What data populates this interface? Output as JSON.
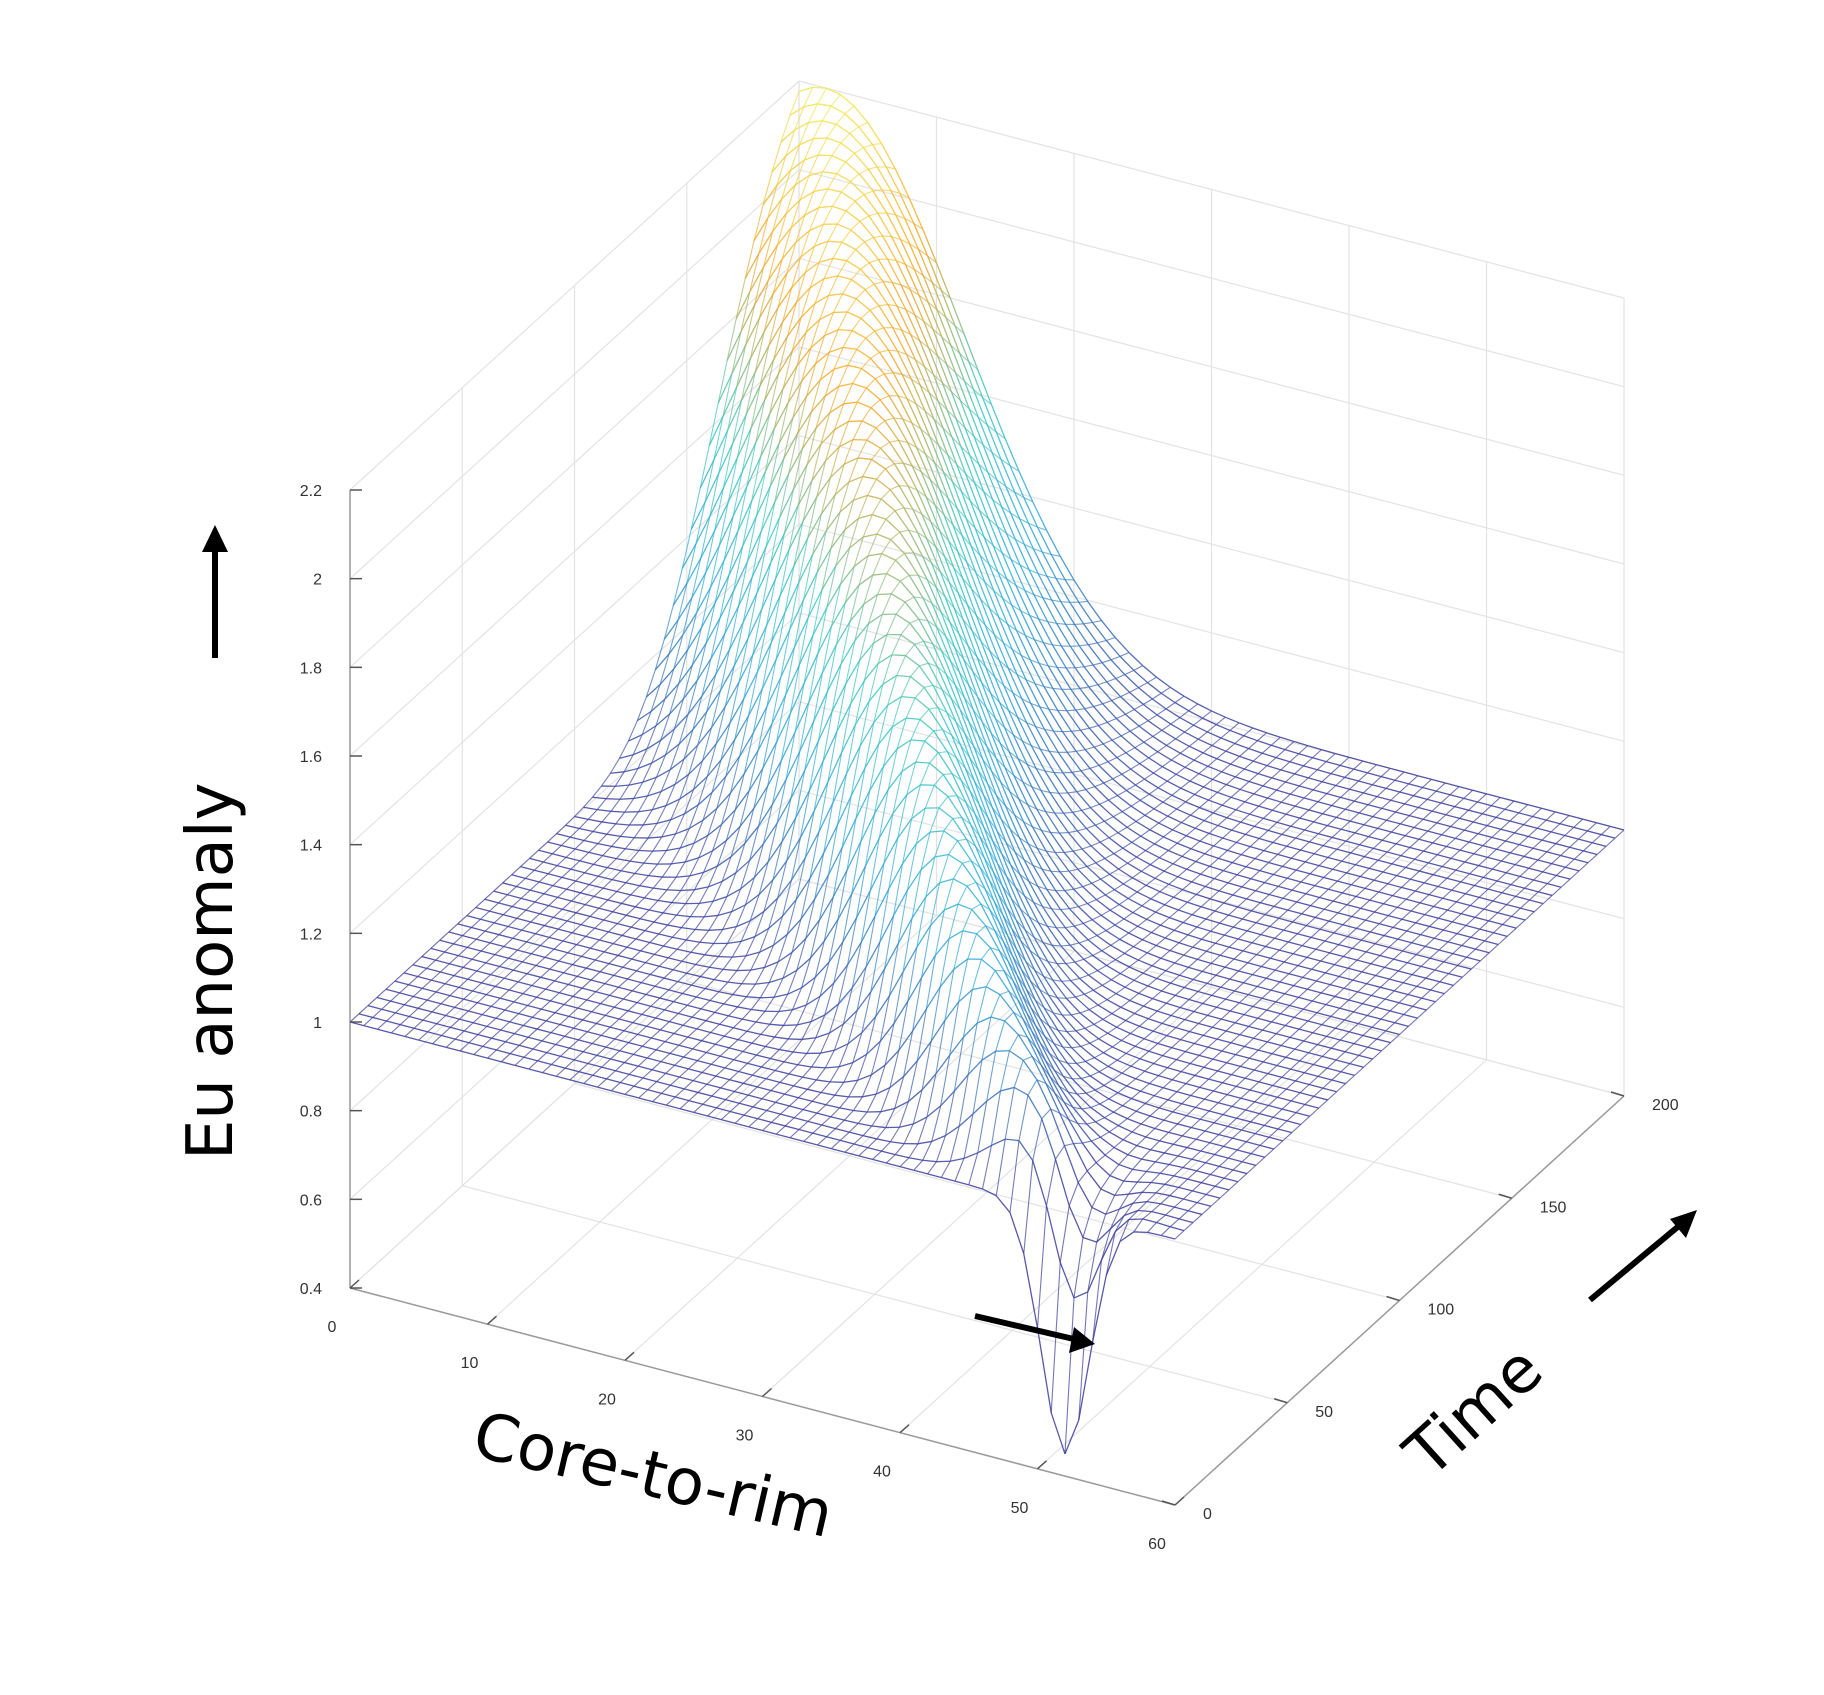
{
  "chart_data": {
    "type": "surface",
    "title": "",
    "xlabel": "Core-to-rim",
    "ylabel": "Time",
    "zlabel": "Eu anomaly",
    "xlim": [
      0,
      60
    ],
    "ylim": [
      0,
      200
    ],
    "zlim": [
      0.4,
      2.2
    ],
    "x_ticks": [
      "0",
      "10",
      "20",
      "30",
      "40",
      "50",
      "60"
    ],
    "y_ticks": [
      "0",
      "50",
      "100",
      "150",
      "200"
    ],
    "z_ticks": [
      "0.4",
      "0.6",
      "0.8",
      "1",
      "1.2",
      "1.4",
      "1.6",
      "1.8",
      "2",
      "2.2"
    ],
    "grid": true,
    "surface": {
      "baseline": 1.0,
      "peak_value": 2.2,
      "peak_at": {
        "x": 2,
        "y": 200
      },
      "trough_value": 0.45,
      "trough_at": {
        "x": 52,
        "y": 0
      },
      "description_of_shape": [
        "rim enrichment front migrating inward with time"
      ]
    },
    "colormap": {
      "low": "#3b3b9a",
      "mid_low": "#2fa8d8",
      "mid": "#3cc8c0",
      "mid_high": "#f5a623",
      "high": "#f2e94e"
    }
  }
}
